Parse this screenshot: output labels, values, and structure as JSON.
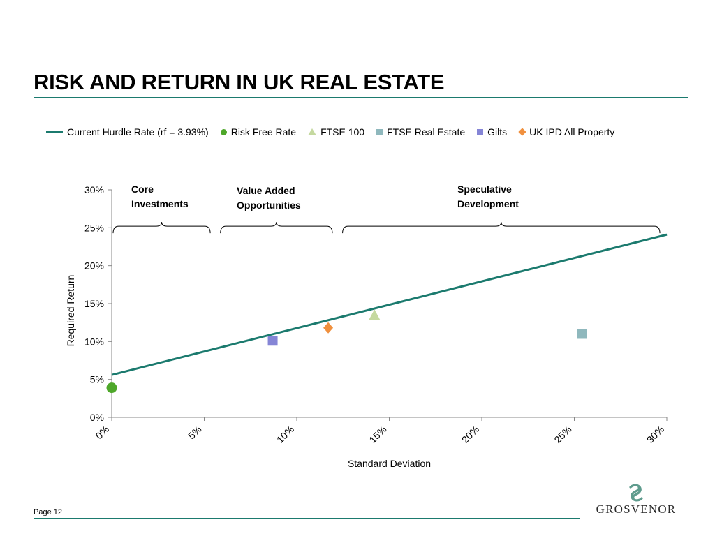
{
  "title": "RISK AND RETURN IN UK REAL ESTATE",
  "legend": [
    {
      "label": "Current Hurdle Rate (rf = 3.93%)",
      "marker": "line",
      "color": "#1b7a6e"
    },
    {
      "label": "Risk Free Rate",
      "marker": "circle",
      "color": "#4ea72a"
    },
    {
      "label": "FTSE 100",
      "marker": "triangle",
      "color": "#c5d9a0"
    },
    {
      "label": "FTSE Real Estate",
      "marker": "square",
      "color": "#8fb8bd"
    },
    {
      "label": "Gilts",
      "marker": "square",
      "color": "#8585d6"
    },
    {
      "label": "UK IPD All Property",
      "marker": "diamond",
      "color": "#f0903e"
    }
  ],
  "chart_data": {
    "type": "scatter",
    "xlabel": "Standard Deviation",
    "ylabel": "Required Return",
    "xlim": [
      0,
      30
    ],
    "ylim": [
      0,
      30
    ],
    "x_ticks": [
      "0%",
      "5%",
      "10%",
      "15%",
      "20%",
      "25%",
      "30%"
    ],
    "y_ticks": [
      "0%",
      "5%",
      "10%",
      "15%",
      "20%",
      "25%",
      "30%"
    ],
    "series": [
      {
        "name": "Current Hurdle Rate (rf = 3.93%)",
        "kind": "line",
        "color": "#1b7a6e",
        "points": [
          [
            0,
            5.6
          ],
          [
            30,
            24.1
          ]
        ]
      },
      {
        "name": "Risk Free Rate",
        "kind": "point",
        "marker": "circle",
        "color": "#4ea72a",
        "points": [
          [
            0,
            3.9
          ]
        ]
      },
      {
        "name": "FTSE 100",
        "kind": "point",
        "marker": "triangle",
        "color": "#c5d9a0",
        "points": [
          [
            14.2,
            13.5
          ]
        ]
      },
      {
        "name": "FTSE Real Estate",
        "kind": "point",
        "marker": "square",
        "color": "#8fb8bd",
        "points": [
          [
            25.4,
            11.0
          ]
        ]
      },
      {
        "name": "Gilts",
        "kind": "point",
        "marker": "square",
        "color": "#8585d6",
        "points": [
          [
            8.7,
            10.1
          ]
        ]
      },
      {
        "name": "UK IPD All Property",
        "kind": "point",
        "marker": "diamond",
        "color": "#f0903e",
        "points": [
          [
            11.7,
            11.8
          ]
        ]
      }
    ],
    "annotations": [
      {
        "lines": [
          "Core",
          "Investments"
        ],
        "range": [
          0,
          5.4
        ]
      },
      {
        "lines": [
          "Value Added",
          "Opportunities"
        ],
        "range": [
          5.8,
          12.0
        ]
      },
      {
        "lines": [
          "Speculative",
          "Development"
        ],
        "range": [
          12.4,
          29.7
        ]
      }
    ],
    "grid": false
  },
  "footer": {
    "page_label": "Page 12"
  },
  "logo": {
    "text": "GROSVENOR"
  }
}
